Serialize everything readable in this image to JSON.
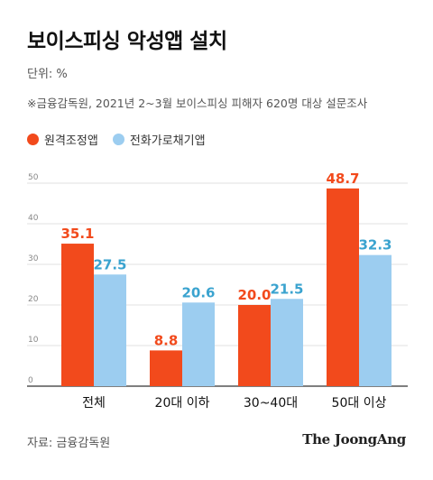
{
  "title": "보이스피싱 악성앱 설치",
  "unit": "단위: %",
  "note": "※금융감독원, 2021년 2~3월 보이스피싱 피해자 620명 대상 설문조사",
  "source": "자료: 금융감독원",
  "logo": "The JoongAng",
  "colors": {
    "series1": "#f24a1c",
    "series2": "#9ccdf0",
    "label1": "#f24a1c",
    "label2": "#3aa3cf",
    "grid": "#e0e0e0",
    "axis": "#888888"
  },
  "chart_data": {
    "type": "bar",
    "categories": [
      "전체",
      "20대 이하",
      "30~40대",
      "50대 이상"
    ],
    "series": [
      {
        "name": "원격조정앱",
        "values": [
          35.1,
          8.8,
          20.0,
          48.7
        ]
      },
      {
        "name": "전화가로채기앱",
        "values": [
          27.5,
          20.6,
          21.5,
          32.3
        ]
      }
    ],
    "value_labels": [
      [
        "35.1",
        "8.8",
        "20.0",
        "48.7"
      ],
      [
        "27.5",
        "20.6",
        "21.5",
        "32.3"
      ]
    ],
    "yticks": [
      "0",
      "10",
      "20",
      "30",
      "40",
      "50"
    ],
    "ylim": [
      0,
      53
    ],
    "grid": true,
    "legend": "top-left"
  }
}
